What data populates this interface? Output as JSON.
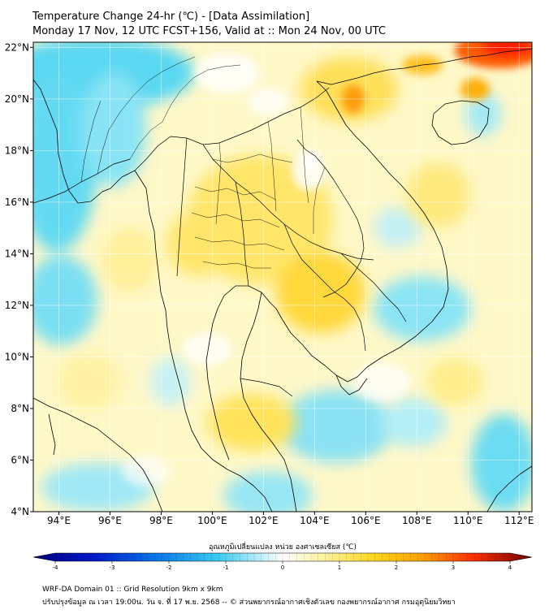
{
  "title_line1": "Temperature Change 24-hr (℃) - [Data Assimilation]",
  "title_line2": "Monday 17 Nov, 12 UTC FCST+156, Valid at :: Mon 24 Nov, 00 UTC",
  "colorbar": {
    "label": "อุณหภูมิเปลี่ยนแปลง หน่วย องศาเซลเซียส (℃)",
    "range": [
      -4,
      4
    ],
    "ticks": [
      "-4",
      "-3",
      "-2",
      "-1",
      "0",
      "1",
      "2",
      "3",
      "4"
    ]
  },
  "footer_line1": "WRF-DA Domain 01 :: Grid Resolution 9km x 9km",
  "footer_line2": "ปรับปรุงข้อมูล ณ เวลา 19:00น. วัน จ. ที่ 17 พ.ย. 2568 -- © ส่วนพยากรณ์อากาศเชิงตัวเลข กองพยากรณ์อากาศ กรมอุตุนิยมวิทยา",
  "map": {
    "lon_range": [
      93,
      112.5
    ],
    "lat_range": [
      4,
      22.2
    ],
    "lon_ticks": [
      "94°E",
      "96°E",
      "98°E",
      "100°E",
      "102°E",
      "104°E",
      "106°E",
      "108°E",
      "110°E",
      "112°E"
    ],
    "lat_ticks": [
      "22°N",
      "20°N",
      "18°N",
      "16°N",
      "14°N",
      "12°N",
      "10°N",
      "8°N",
      "6°N",
      "4°N"
    ],
    "grid": true,
    "colors": {
      "cold": "#3fd0ee",
      "mild_warm": "#fff2a0",
      "warm": "#ffd21e",
      "hot": "#ff8a00",
      "very_hot": "#ff1a00"
    }
  }
}
